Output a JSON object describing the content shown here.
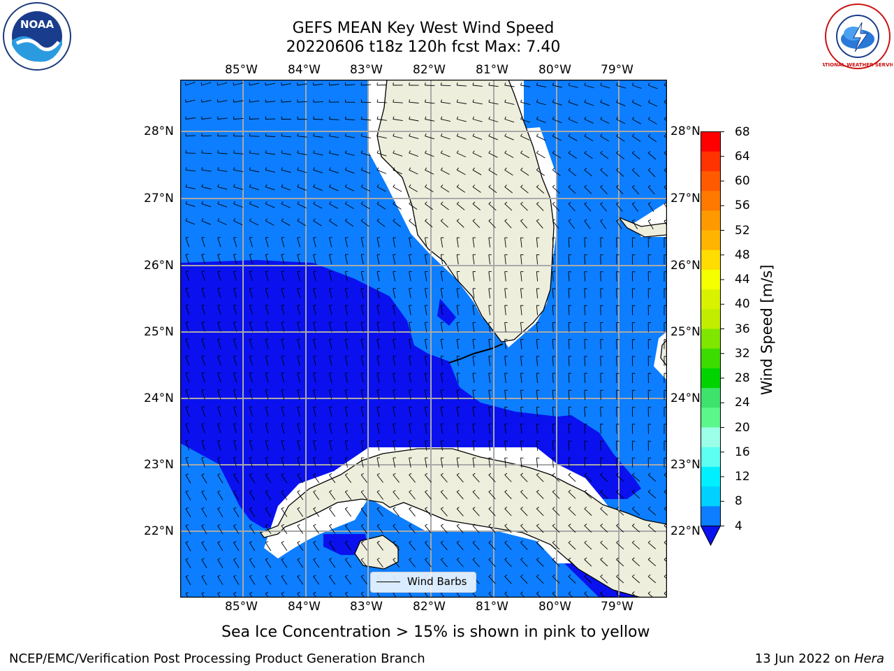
{
  "title": {
    "line1": "GEFS MEAN Key West Wind Speed",
    "line2": "20220606 t18z 120h fcst   Max: 7.40"
  },
  "map": {
    "lon_labels": [
      "85°W",
      "84°W",
      "83°W",
      "82°W",
      "81°W",
      "80°W",
      "79°W"
    ],
    "lat_labels": [
      "28°N",
      "27°N",
      "26°N",
      "25°N",
      "24°N",
      "23°N",
      "22°N"
    ],
    "legend_label": "Wind Barbs"
  },
  "colorbar": {
    "label": "Wind Speed [m/s]",
    "ticks": [
      "68",
      "64",
      "60",
      "56",
      "52",
      "48",
      "44",
      "40",
      "36",
      "32",
      "28",
      "24",
      "20",
      "16",
      "12",
      "8",
      "4"
    ],
    "colors": [
      "#ff0000",
      "#ff3300",
      "#ff5a00",
      "#ff7800",
      "#ff9900",
      "#ffb400",
      "#ffdd00",
      "#f5ff00",
      "#d9f200",
      "#c2ed00",
      "#7fe600",
      "#3ddc00",
      "#00d400",
      "#3ee36c",
      "#5cf78a",
      "#9cffe8",
      "#5dfff2",
      "#00f0ff",
      "#00d2ff",
      "#0c7eff"
    ],
    "under_color": "#0a11ee"
  },
  "caption": "Sea Ice Concentration > 15% is shown in pink to yellow",
  "footer": {
    "left": "NCEP/EMC/Verification Post Processing Product Generation Branch",
    "date": "13 Jun 2022 on ",
    "host": "Hera"
  },
  "logos": {
    "noaa_text": "NOAA",
    "nws_text": "NATIONAL WEATHER SERVICE"
  }
}
